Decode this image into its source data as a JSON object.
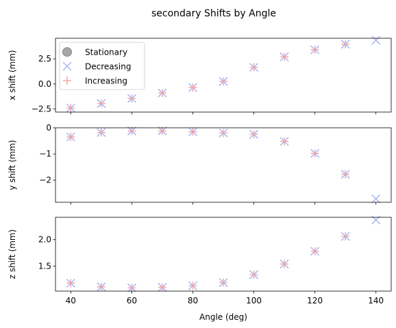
{
  "figure": {
    "title": "secondary Shifts by Angle"
  },
  "legend": {
    "placement": "upper-left",
    "entries": [
      {
        "label": "Stationary",
        "marker": "circle",
        "color": "#a6a6a6"
      },
      {
        "label": "Decreasing",
        "marker": "x",
        "color": "#aab4f2"
      },
      {
        "label": "Increasing",
        "marker": "plus",
        "color": "#f2a6a6"
      }
    ]
  },
  "chart_data": [
    {
      "type": "scatter",
      "title": "",
      "xlabel": "",
      "ylabel": "x shift (mm)",
      "xlim": [
        35,
        145
      ],
      "ylim": [
        -2.8,
        4.55
      ],
      "yticks": [
        -2.5,
        0.0,
        2.5
      ],
      "ytick_labels": [
        "−2.5",
        "0.0",
        "2.5"
      ],
      "xticks": [
        40,
        60,
        80,
        100,
        120,
        140
      ],
      "show_xtick_labels": false,
      "grid": false,
      "series": [
        {
          "name": "Decreasing",
          "color": "#aab4f2",
          "marker": "x",
          "x": [
            40,
            50,
            60,
            70,
            80,
            90,
            100,
            110,
            120,
            130,
            140
          ],
          "y": [
            -2.4,
            -1.95,
            -1.45,
            -0.9,
            -0.35,
            0.25,
            1.65,
            2.7,
            3.4,
            3.95,
            4.35
          ]
        },
        {
          "name": "Increasing",
          "color": "#f2a6a6",
          "marker": "plus",
          "x": [
            40,
            50,
            60,
            70,
            80,
            90,
            100,
            110,
            120,
            130
          ],
          "y": [
            -2.4,
            -1.95,
            -1.45,
            -0.9,
            -0.35,
            0.25,
            1.65,
            2.7,
            3.4,
            3.95
          ]
        }
      ]
    },
    {
      "type": "scatter",
      "title": "",
      "xlabel": "",
      "ylabel": "y shift (mm)",
      "xlim": [
        35,
        145
      ],
      "ylim": [
        -2.85,
        0.0
      ],
      "yticks": [
        -2,
        -1,
        0
      ],
      "ytick_labels": [
        "−2",
        "−1",
        "0"
      ],
      "xticks": [
        40,
        60,
        80,
        100,
        120,
        140
      ],
      "show_xtick_labels": false,
      "grid": false,
      "series": [
        {
          "name": "Decreasing",
          "color": "#aab4f2",
          "marker": "x",
          "x": [
            40,
            50,
            60,
            70,
            80,
            90,
            100,
            110,
            120,
            130,
            140
          ],
          "y": [
            -0.35,
            -0.18,
            -0.12,
            -0.12,
            -0.15,
            -0.2,
            -0.25,
            -0.52,
            -0.98,
            -1.78,
            -2.72
          ]
        },
        {
          "name": "Increasing",
          "color": "#f2a6a6",
          "marker": "plus",
          "x": [
            40,
            50,
            60,
            70,
            80,
            90,
            100,
            110,
            120,
            130
          ],
          "y": [
            -0.35,
            -0.18,
            -0.12,
            -0.12,
            -0.15,
            -0.2,
            -0.25,
            -0.52,
            -0.98,
            -1.78
          ]
        }
      ]
    },
    {
      "type": "scatter",
      "title": "",
      "xlabel": "Angle (deg)",
      "ylabel": "z shift (mm)",
      "xlim": [
        35,
        145
      ],
      "ylim": [
        1.03,
        2.42
      ],
      "yticks": [
        1.5,
        2.0
      ],
      "ytick_labels": [
        "1.5",
        "2.0"
      ],
      "xticks": [
        40,
        60,
        80,
        100,
        120,
        140
      ],
      "show_xtick_labels": true,
      "grid": false,
      "series": [
        {
          "name": "Decreasing",
          "color": "#aab4f2",
          "marker": "x",
          "x": [
            40,
            50,
            60,
            70,
            80,
            90,
            100,
            110,
            120,
            130,
            140
          ],
          "y": [
            1.18,
            1.11,
            1.09,
            1.1,
            1.13,
            1.19,
            1.34,
            1.54,
            1.78,
            2.06,
            2.37
          ]
        },
        {
          "name": "Increasing",
          "color": "#f2a6a6",
          "marker": "plus",
          "x": [
            40,
            50,
            60,
            70,
            80,
            90,
            100,
            110,
            120,
            130
          ],
          "y": [
            1.18,
            1.11,
            1.09,
            1.1,
            1.13,
            1.19,
            1.34,
            1.54,
            1.78,
            2.06
          ]
        }
      ]
    }
  ]
}
